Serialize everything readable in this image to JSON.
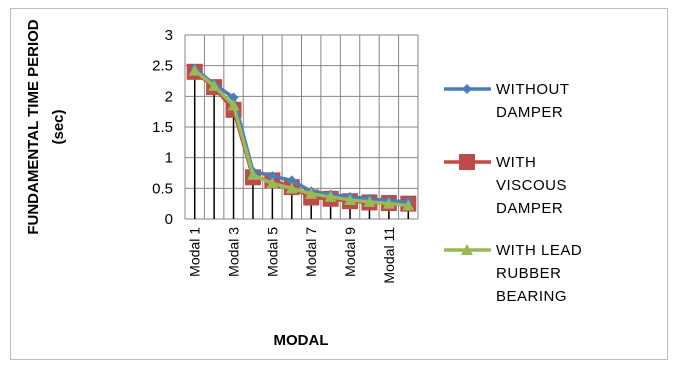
{
  "chart_data": {
    "type": "line",
    "title": "",
    "xlabel": "MODAL",
    "ylabel_lines": [
      "FUNDAMENTAL TIME PERIOD",
      "(sec)"
    ],
    "ylim": [
      0,
      3
    ],
    "yticks": [
      "0",
      "0.5",
      "1",
      "1.5",
      "2",
      "2.5",
      "3"
    ],
    "categories": [
      "Modal 1",
      "Modal 2",
      "Modal 3",
      "Modal 4",
      "Modal 5",
      "Modal 6",
      "Modal 7",
      "Modal 8",
      "Modal 9",
      "Modal 10",
      "Modal 11",
      "Modal 12"
    ],
    "category_labels_shown": [
      "Modal 1",
      "",
      "Modal 3",
      "",
      "Modal 5",
      "",
      "Modal 7",
      "",
      "Modal 9",
      "",
      "Modal 11",
      ""
    ],
    "grid": {
      "horizontal": true,
      "vertical": true
    },
    "drop_lines": true,
    "legend_position": "right",
    "series": [
      {
        "name_lines": [
          "WITHOUT",
          "DAMPER"
        ],
        "marker": "diamond",
        "color": "#4a7ebb",
        "values": [
          2.45,
          2.2,
          1.98,
          0.78,
          0.7,
          0.63,
          0.45,
          0.4,
          0.36,
          0.33,
          0.3,
          0.28
        ]
      },
      {
        "name_lines": [
          "WITH",
          "VISCOUS",
          "DAMPER"
        ],
        "marker": "square",
        "color": "#be4b48",
        "values": [
          2.4,
          2.15,
          1.78,
          0.68,
          0.63,
          0.52,
          0.35,
          0.33,
          0.29,
          0.27,
          0.26,
          0.25
        ]
      },
      {
        "name_lines": [
          "WITH LEAD",
          "RUBBER",
          "BEARING"
        ],
        "marker": "triangle",
        "color": "#98b954",
        "values": [
          2.42,
          2.17,
          1.85,
          0.72,
          0.58,
          0.5,
          0.41,
          0.36,
          0.31,
          0.28,
          0.25,
          0.22
        ]
      }
    ]
  }
}
